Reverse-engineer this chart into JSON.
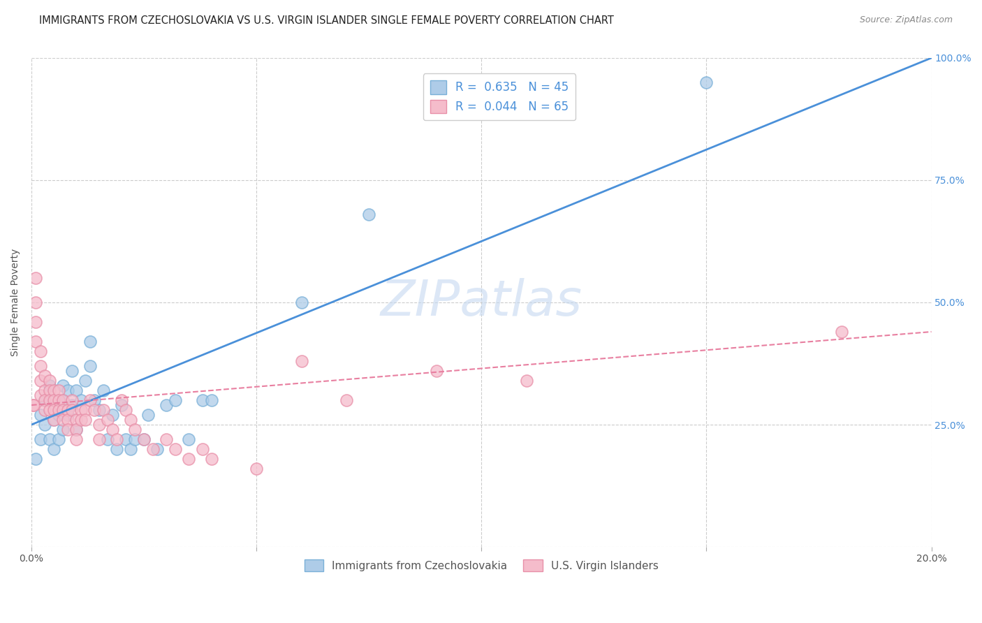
{
  "title": "IMMIGRANTS FROM CZECHOSLOVAKIA VS U.S. VIRGIN ISLANDER SINGLE FEMALE POVERTY CORRELATION CHART",
  "source": "Source: ZipAtlas.com",
  "ylabel": "Single Female Poverty",
  "watermark": "ZIPatlas",
  "xlim": [
    0.0,
    0.2
  ],
  "ylim": [
    0.0,
    1.0
  ],
  "xticks": [
    0.0,
    0.05,
    0.1,
    0.15,
    0.2
  ],
  "ytick_positions": [
    0.0,
    0.25,
    0.5,
    0.75,
    1.0
  ],
  "ytick_labels_right": [
    "",
    "25.0%",
    "50.0%",
    "75.0%",
    "100.0%"
  ],
  "blue_R": 0.635,
  "blue_N": 45,
  "pink_R": 0.044,
  "pink_N": 65,
  "blue_color": "#aecce8",
  "blue_edge": "#7ab0d8",
  "pink_color": "#f5bccb",
  "pink_edge": "#e88fa8",
  "blue_line_color": "#4a90d9",
  "pink_line_color": "#e87fa0",
  "legend_blue_color": "#aecce8",
  "legend_pink_color": "#f5bccb",
  "blue_scatter_x": [
    0.001,
    0.002,
    0.002,
    0.003,
    0.003,
    0.004,
    0.004,
    0.005,
    0.005,
    0.006,
    0.006,
    0.007,
    0.007,
    0.007,
    0.008,
    0.008,
    0.009,
    0.009,
    0.01,
    0.01,
    0.011,
    0.012,
    0.013,
    0.013,
    0.014,
    0.015,
    0.016,
    0.017,
    0.018,
    0.019,
    0.02,
    0.021,
    0.022,
    0.023,
    0.025,
    0.026,
    0.028,
    0.03,
    0.032,
    0.035,
    0.038,
    0.04,
    0.06,
    0.075,
    0.15
  ],
  "blue_scatter_y": [
    0.18,
    0.22,
    0.27,
    0.25,
    0.3,
    0.22,
    0.33,
    0.2,
    0.26,
    0.22,
    0.27,
    0.24,
    0.3,
    0.33,
    0.27,
    0.32,
    0.29,
    0.36,
    0.24,
    0.32,
    0.3,
    0.34,
    0.42,
    0.37,
    0.3,
    0.28,
    0.32,
    0.22,
    0.27,
    0.2,
    0.29,
    0.22,
    0.2,
    0.22,
    0.22,
    0.27,
    0.2,
    0.29,
    0.3,
    0.22,
    0.3,
    0.3,
    0.5,
    0.68,
    0.95
  ],
  "pink_scatter_x": [
    0.0003,
    0.0005,
    0.001,
    0.001,
    0.001,
    0.001,
    0.002,
    0.002,
    0.002,
    0.002,
    0.003,
    0.003,
    0.003,
    0.003,
    0.004,
    0.004,
    0.004,
    0.004,
    0.005,
    0.005,
    0.005,
    0.005,
    0.006,
    0.006,
    0.006,
    0.007,
    0.007,
    0.007,
    0.008,
    0.008,
    0.008,
    0.009,
    0.009,
    0.01,
    0.01,
    0.01,
    0.011,
    0.011,
    0.012,
    0.012,
    0.013,
    0.014,
    0.015,
    0.015,
    0.016,
    0.017,
    0.018,
    0.019,
    0.02,
    0.021,
    0.022,
    0.023,
    0.025,
    0.027,
    0.03,
    0.032,
    0.035,
    0.038,
    0.04,
    0.05,
    0.06,
    0.07,
    0.09,
    0.11,
    0.18
  ],
  "pink_scatter_y": [
    0.29,
    0.29,
    0.55,
    0.5,
    0.46,
    0.42,
    0.4,
    0.37,
    0.34,
    0.31,
    0.35,
    0.32,
    0.3,
    0.28,
    0.34,
    0.32,
    0.3,
    0.28,
    0.32,
    0.3,
    0.28,
    0.26,
    0.32,
    0.3,
    0.28,
    0.3,
    0.28,
    0.26,
    0.28,
    0.26,
    0.24,
    0.3,
    0.28,
    0.26,
    0.24,
    0.22,
    0.28,
    0.26,
    0.28,
    0.26,
    0.3,
    0.28,
    0.25,
    0.22,
    0.28,
    0.26,
    0.24,
    0.22,
    0.3,
    0.28,
    0.26,
    0.24,
    0.22,
    0.2,
    0.22,
    0.2,
    0.18,
    0.2,
    0.18,
    0.16,
    0.38,
    0.3,
    0.36,
    0.34,
    0.44
  ],
  "blue_trendline_x": [
    0.0,
    0.2
  ],
  "blue_trendline_y": [
    0.25,
    1.0
  ],
  "pink_trendline_x": [
    0.0,
    0.2
  ],
  "pink_trendline_y": [
    0.29,
    0.44
  ],
  "background_color": "#ffffff",
  "grid_color": "#cccccc",
  "title_fontsize": 10.5,
  "label_fontsize": 10,
  "tick_fontsize": 10,
  "watermark_fontsize": 52,
  "watermark_color": "#c5d8f0",
  "watermark_alpha": 0.6
}
